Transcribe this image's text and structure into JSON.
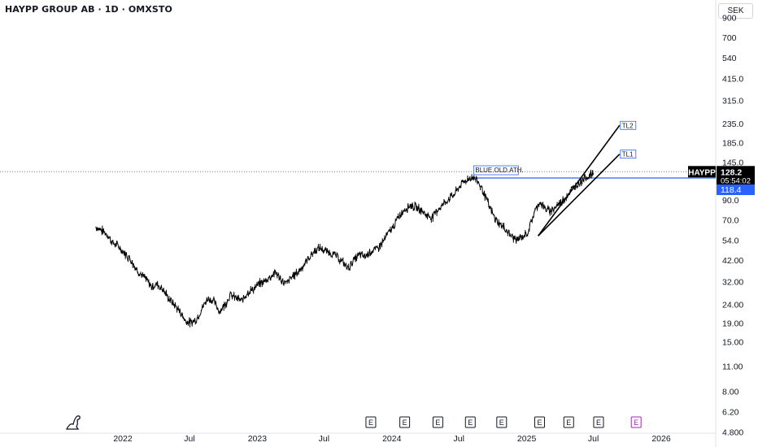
{
  "header": {
    "title": "HAYPP GROUP AB · 1D · OMXSTO",
    "currency": "SEK"
  },
  "icons": {
    "logo": "tradingview-logo-icon",
    "earnings": "earnings-e-icon"
  },
  "colors": {
    "price_line": "#000000",
    "level_line": "#2962ff",
    "ticker_badge": "#000000",
    "level_badge": "#2962ff",
    "earnings_future": "#9c27b0",
    "axis_text": "#131722"
  },
  "chart_data": {
    "type": "line",
    "title": "",
    "y_scale": "log",
    "ylim": [
      4.4,
      1000
    ],
    "y_ticks": [
      "900",
      "700",
      "540",
      "415.0",
      "315.0",
      "235.0",
      "185.0",
      "145.0",
      "90.0",
      "70.0",
      "54.0",
      "42.00",
      "32.00",
      "24.00",
      "19.00",
      "15.00",
      "11.00",
      "8.00",
      "6.20",
      "4.800"
    ],
    "x_ticks": [
      "2022",
      "Jul",
      "2023",
      "Jul",
      "2024",
      "Jul",
      "2025",
      "Jul",
      "2026"
    ],
    "series": [
      {
        "x": [
          "2021-10-20",
          "2021-11-05",
          "2021-11-20",
          "2021-12-05",
          "2021-12-20",
          "2022-01-05",
          "2022-01-20",
          "2022-02-05",
          "2022-02-20",
          "2022-03-05",
          "2022-03-20",
          "2022-04-05",
          "2022-04-20",
          "2022-05-05",
          "2022-05-20",
          "2022-06-05",
          "2022-06-20",
          "2022-07-05",
          "2022-07-20",
          "2022-08-05",
          "2022-08-20",
          "2022-09-05",
          "2022-09-20",
          "2022-10-05",
          "2022-10-20",
          "2022-11-05",
          "2022-11-20",
          "2022-12-05",
          "2022-12-20",
          "2023-01-05",
          "2023-01-20",
          "2023-02-05",
          "2023-02-20",
          "2023-03-05",
          "2023-03-20",
          "2023-04-05",
          "2023-04-20",
          "2023-05-05",
          "2023-05-20",
          "2023-06-05",
          "2023-06-20",
          "2023-07-05",
          "2023-07-20",
          "2023-08-05",
          "2023-08-20",
          "2023-09-05",
          "2023-09-20",
          "2023-10-05",
          "2023-10-20",
          "2023-11-05",
          "2023-11-20",
          "2023-12-05",
          "2023-12-20",
          "2024-01-05",
          "2024-01-20",
          "2024-02-05",
          "2024-02-20",
          "2024-03-05",
          "2024-03-20",
          "2024-04-05",
          "2024-04-20",
          "2024-05-05",
          "2024-05-20",
          "2024-06-05",
          "2024-06-20",
          "2024-07-05",
          "2024-07-20",
          "2024-08-05",
          "2024-08-20",
          "2024-09-05",
          "2024-09-20",
          "2024-10-05",
          "2024-10-20",
          "2024-11-05",
          "2024-11-20",
          "2024-12-05",
          "2024-12-20",
          "2025-01-05",
          "2025-01-20",
          "2025-02-05",
          "2025-02-20",
          "2025-03-05",
          "2025-03-20",
          "2025-04-05",
          "2025-04-20",
          "2025-05-05",
          "2025-05-20",
          "2025-06-05",
          "2025-06-20",
          "2025-07-01"
        ],
        "y": [
          64,
          61,
          58,
          52,
          50,
          46,
          43,
          38,
          35,
          33,
          30,
          31,
          29,
          26,
          24,
          22,
          19.5,
          19,
          20,
          23,
          26,
          25,
          22,
          24,
          27,
          26,
          25,
          28,
          29,
          31,
          32,
          34,
          36,
          33,
          31,
          34,
          36,
          39,
          43,
          47,
          49,
          47,
          46,
          44,
          41,
          38,
          42,
          45,
          44,
          47,
          48,
          52,
          58,
          64,
          73,
          80,
          84,
          82,
          79,
          74,
          72,
          80,
          85,
          92,
          97,
          108,
          115,
          120,
          115,
          100,
          84,
          72,
          66,
          62,
          57,
          54,
          56,
          60,
          75,
          88,
          80,
          78,
          82,
          88,
          95,
          103,
          110,
          118,
          122,
          126
        ]
      }
    ],
    "annotations": [
      {
        "label": "BLUE.OLD.ATH.",
        "type": "horizontal",
        "value": 118.4
      },
      {
        "label": "TL2",
        "type": "trend_line",
        "from": {
          "x": "2025-02-01",
          "y": 57
        },
        "to": {
          "x": "2025-09-10",
          "y": 230
        }
      },
      {
        "label": "TL1",
        "type": "trend_line",
        "from": {
          "x": "2025-02-01",
          "y": 57
        },
        "to": {
          "x": "2025-09-10",
          "y": 160
        }
      }
    ],
    "earnings_markers": [
      {
        "label": "E",
        "future": false
      },
      {
        "label": "E",
        "future": false
      },
      {
        "label": "E",
        "future": false
      },
      {
        "label": "E",
        "future": false
      },
      {
        "label": "E",
        "future": false
      },
      {
        "label": "E",
        "future": false
      },
      {
        "label": "E",
        "future": false
      },
      {
        "label": "E",
        "future": false
      },
      {
        "label": "E",
        "future": true
      }
    ],
    "last_price": {
      "ticker": "HAYPP",
      "value": "128.2",
      "countdown": "05:54:02"
    },
    "level_label": "118.4",
    "grid": false,
    "legend": "none"
  }
}
